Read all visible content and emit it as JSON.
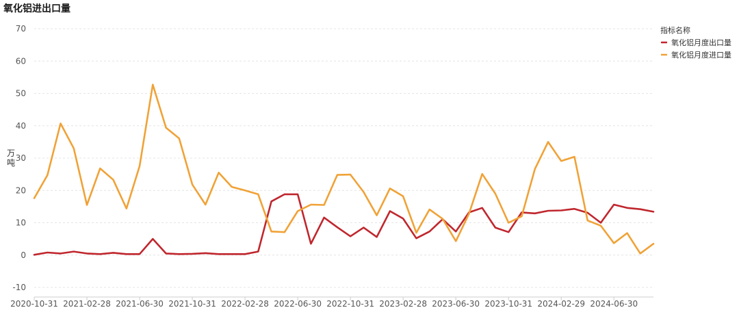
{
  "title": "氧化铝进出口量",
  "chart_data": {
    "type": "line",
    "title": "氧化铝进出口量",
    "ylabel": "万吨",
    "xlabel": "",
    "ylim": [
      -10,
      70
    ],
    "yticks": [
      -10,
      0,
      10,
      20,
      30,
      40,
      50,
      60,
      70
    ],
    "x_tick_labels": [
      "2020-10-31",
      "2021-02-28",
      "2021-06-30",
      "2021-10-31",
      "2022-02-28",
      "2022-06-30",
      "2022-10-31",
      "2023-02-28",
      "2023-06-30",
      "2023-10-31",
      "2024-02-29",
      "2024-06-30"
    ],
    "x": [
      "2020-10-31",
      "2020-11-30",
      "2020-12-31",
      "2021-01-31",
      "2021-02-28",
      "2021-03-31",
      "2021-04-30",
      "2021-05-31",
      "2021-06-30",
      "2021-07-31",
      "2021-08-31",
      "2021-09-30",
      "2021-10-31",
      "2021-11-30",
      "2021-12-31",
      "2022-01-31",
      "2022-02-28",
      "2022-03-31",
      "2022-04-30",
      "2022-05-31",
      "2022-06-30",
      "2022-07-31",
      "2022-08-31",
      "2022-09-30",
      "2022-10-31",
      "2022-11-30",
      "2022-12-31",
      "2023-01-31",
      "2023-02-28",
      "2023-03-31",
      "2023-04-30",
      "2023-05-31",
      "2023-06-30",
      "2023-07-31",
      "2023-08-31",
      "2023-09-30",
      "2023-10-31",
      "2023-11-30",
      "2023-12-31",
      "2024-01-31",
      "2024-02-29",
      "2024-03-31",
      "2024-04-30",
      "2024-05-31",
      "2024-06-30",
      "2024-07-31",
      "2024-08-31",
      "2024-09-30"
    ],
    "grid": true,
    "legend": {
      "title": "指标名称",
      "placement": "top-right"
    },
    "series": [
      {
        "name": "氧化铝月度出口量",
        "color": "#c0262d",
        "values": [
          0.1,
          0.8,
          0.5,
          1.1,
          0.5,
          0.3,
          0.7,
          0.3,
          0.3,
          5.0,
          0.5,
          0.3,
          0.4,
          0.6,
          0.3,
          0.3,
          0.3,
          1.1,
          16.6,
          18.8,
          18.8,
          3.5,
          11.6,
          8.6,
          5.8,
          8.5,
          5.6,
          13.6,
          11.3,
          5.2,
          7.3,
          11.1,
          7.3,
          13.2,
          14.6,
          8.5,
          7.1,
          13.2,
          12.9,
          13.7,
          13.8,
          14.3,
          13.1,
          10.0,
          15.6,
          14.6,
          14.2,
          13.4
        ]
      },
      {
        "name": "氧化铝月度进口量",
        "color": "#f0a236",
        "values": [
          17.6,
          24.7,
          40.7,
          33.0,
          15.5,
          26.8,
          23.3,
          14.4,
          27.5,
          52.7,
          39.4,
          36.1,
          21.8,
          15.6,
          25.5,
          21.1,
          20.0,
          18.8,
          7.3,
          7.1,
          13.6,
          15.6,
          15.5,
          24.8,
          24.9,
          19.5,
          12.3,
          20.6,
          18.2,
          6.9,
          14.1,
          11.2,
          4.3,
          12.8,
          25.1,
          19.0,
          10.0,
          12.0,
          26.6,
          35.0,
          29.1,
          30.4,
          10.7,
          9.1,
          3.7,
          6.8,
          0.5,
          3.5
        ]
      }
    ]
  }
}
